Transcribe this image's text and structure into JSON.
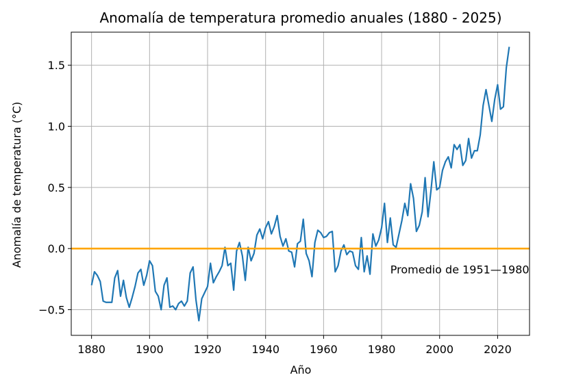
{
  "chart_data": {
    "type": "line",
    "title": "Anomalía de temperatura promedio anuales (1880 - 2025)",
    "xlabel": "Año",
    "ylabel": "Anomalía de temperatura (°C)",
    "xlim": [
      1873,
      2031
    ],
    "ylim": [
      -0.71,
      1.77
    ],
    "grid": true,
    "x_ticks": [
      1880,
      1900,
      1920,
      1940,
      1960,
      1980,
      2000,
      2020
    ],
    "y_ticks": [
      -0.5,
      0.0,
      0.5,
      1.0,
      1.5
    ],
    "y_tick_labels": [
      "−0.5",
      "0.0",
      "0.5",
      "1.0",
      "1.5"
    ],
    "series": [
      {
        "color": "#1f77b4",
        "x": [
          1880,
          1881,
          1882,
          1883,
          1884,
          1885,
          1886,
          1887,
          1888,
          1889,
          1890,
          1891,
          1892,
          1893,
          1894,
          1895,
          1896,
          1897,
          1898,
          1899,
          1900,
          1901,
          1902,
          1903,
          1904,
          1905,
          1906,
          1907,
          1908,
          1909,
          1910,
          1911,
          1912,
          1913,
          1914,
          1915,
          1916,
          1917,
          1918,
          1919,
          1920,
          1921,
          1922,
          1923,
          1924,
          1925,
          1926,
          1927,
          1928,
          1929,
          1930,
          1931,
          1932,
          1933,
          1934,
          1935,
          1936,
          1937,
          1938,
          1939,
          1940,
          1941,
          1942,
          1943,
          1944,
          1945,
          1946,
          1947,
          1948,
          1949,
          1950,
          1951,
          1952,
          1953,
          1954,
          1955,
          1956,
          1957,
          1958,
          1959,
          1960,
          1961,
          1962,
          1963,
          1964,
          1965,
          1966,
          1967,
          1968,
          1969,
          1970,
          1971,
          1972,
          1973,
          1974,
          1975,
          1976,
          1977,
          1978,
          1979,
          1980,
          1981,
          1982,
          1983,
          1984,
          1985,
          1986,
          1987,
          1988,
          1989,
          1990,
          1991,
          1992,
          1993,
          1994,
          1995,
          1996,
          1997,
          1998,
          1999,
          2000,
          2001,
          2002,
          2003,
          2004,
          2005,
          2006,
          2007,
          2008,
          2009,
          2010,
          2011,
          2012,
          2013,
          2014,
          2015,
          2016,
          2017,
          2018,
          2019,
          2020,
          2021,
          2022,
          2023,
          2024
        ],
        "y": [
          -0.3,
          -0.19,
          -0.22,
          -0.27,
          -0.43,
          -0.44,
          -0.44,
          -0.44,
          -0.24,
          -0.18,
          -0.39,
          -0.26,
          -0.4,
          -0.48,
          -0.4,
          -0.31,
          -0.2,
          -0.17,
          -0.3,
          -0.22,
          -0.1,
          -0.14,
          -0.35,
          -0.39,
          -0.5,
          -0.3,
          -0.24,
          -0.48,
          -0.47,
          -0.5,
          -0.45,
          -0.43,
          -0.47,
          -0.43,
          -0.2,
          -0.15,
          -0.42,
          -0.59,
          -0.41,
          -0.36,
          -0.31,
          -0.12,
          -0.28,
          -0.23,
          -0.19,
          -0.14,
          0.01,
          -0.14,
          -0.12,
          -0.34,
          -0.02,
          0.05,
          -0.06,
          -0.26,
          0.01,
          -0.1,
          -0.04,
          0.11,
          0.16,
          0.08,
          0.17,
          0.22,
          0.12,
          0.18,
          0.27,
          0.1,
          0.02,
          0.08,
          -0.02,
          -0.03,
          -0.15,
          0.04,
          0.06,
          0.24,
          -0.04,
          -0.1,
          -0.23,
          0.05,
          0.15,
          0.13,
          0.09,
          0.1,
          0.13,
          0.14,
          -0.19,
          -0.14,
          -0.02,
          0.03,
          -0.05,
          -0.02,
          -0.03,
          -0.14,
          -0.17,
          0.09,
          -0.19,
          -0.06,
          -0.21,
          0.12,
          0.02,
          0.07,
          0.17,
          0.37,
          0.05,
          0.25,
          0.03,
          0.01,
          0.12,
          0.23,
          0.37,
          0.27,
          0.53,
          0.41,
          0.14,
          0.19,
          0.3,
          0.58,
          0.26,
          0.47,
          0.71,
          0.48,
          0.5,
          0.64,
          0.71,
          0.75,
          0.66,
          0.85,
          0.81,
          0.85,
          0.68,
          0.72,
          0.9,
          0.74,
          0.8,
          0.8,
          0.93,
          1.17,
          1.3,
          1.17,
          1.04,
          1.22,
          1.34,
          1.14,
          1.16,
          1.48,
          1.65
        ]
      },
      {
        "color": "#ffa500",
        "x": [
          1873,
          2031
        ],
        "y": [
          0.0,
          0.0
        ]
      }
    ],
    "annotations": [
      {
        "text": "Promedio de 1951—1980",
        "x": 1983,
        "y": -0.17
      }
    ]
  }
}
